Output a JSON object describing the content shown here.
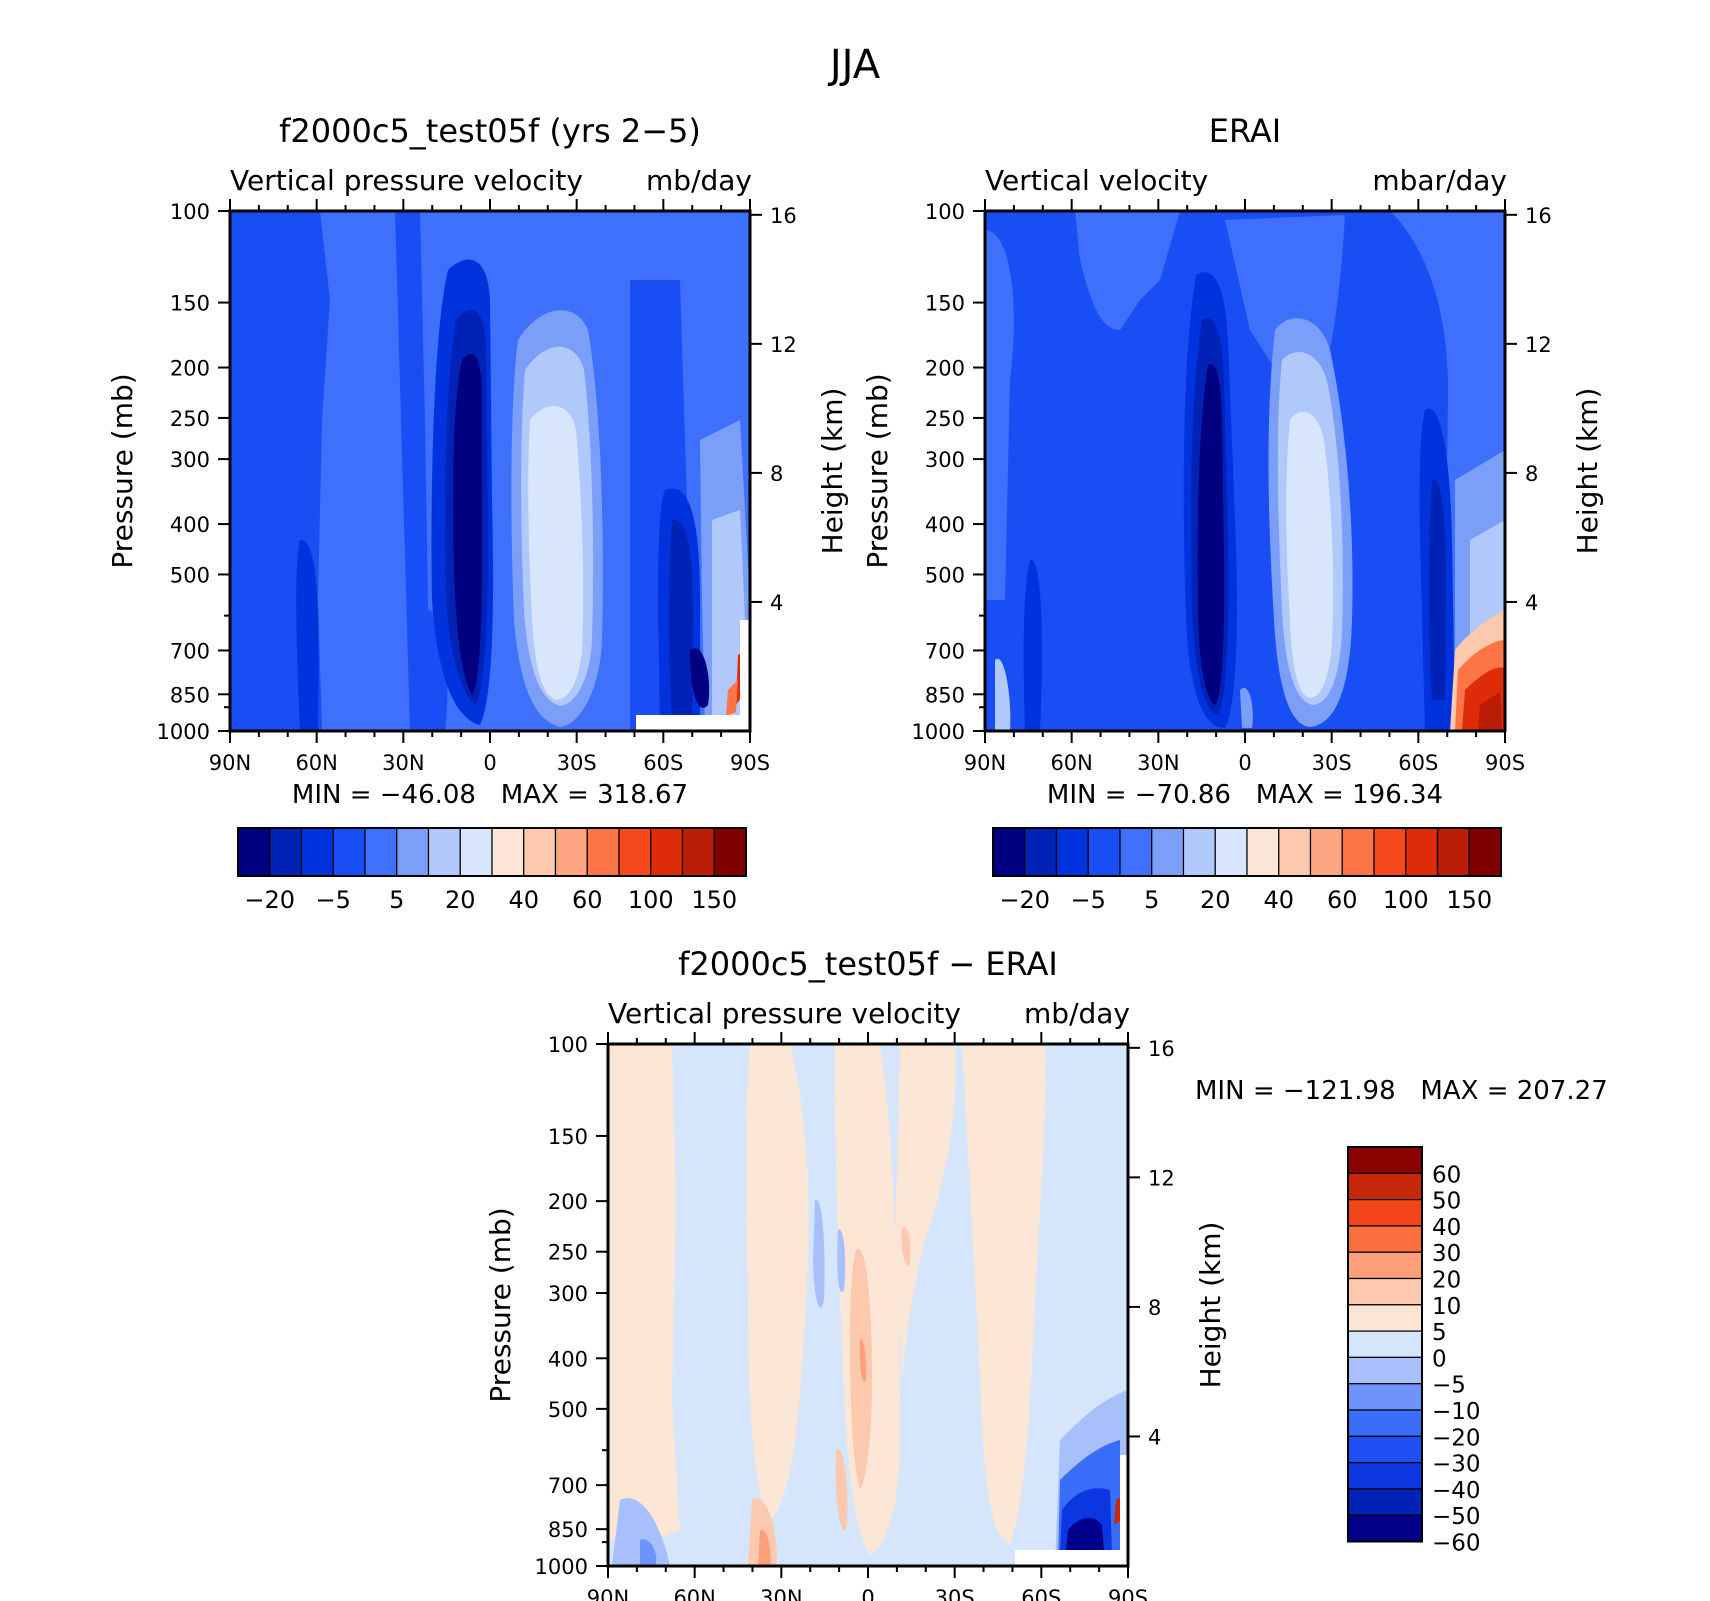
{
  "page_title": "JJA",
  "colors": {
    "model_obs_palette": [
      "#000080",
      "#0022b5",
      "#0033dd",
      "#1a4ef5",
      "#3f70fb",
      "#7b9ff8",
      "#b0c8fa",
      "#d8e6fd",
      "#fbe6d7",
      "#fcc8ae",
      "#fca583",
      "#fb7547",
      "#f5481c",
      "#dd2c07",
      "#b91d06",
      "#800000"
    ],
    "diff_palette": [
      "#00008a",
      "#0022b5",
      "#0b36e0",
      "#1d4ff5",
      "#3b6ef8",
      "#6f94f9",
      "#a7c0fb",
      "#d5e5fc",
      "#fbe6d6",
      "#fcc8ae",
      "#fca07a",
      "#fb6f3f",
      "#f3441a",
      "#c8280a",
      "#8b0000"
    ]
  },
  "chart_data": [
    {
      "type": "heatmap",
      "title": "f2000c5_test05f (yrs 2−5)",
      "subtitle_left": "Vertical pressure velocity",
      "subtitle_right": "mb/day",
      "ylabel": "Pressure (mb)",
      "ylabel_right": "Height (km)",
      "x_ticks": [
        "90N",
        "60N",
        "30N",
        "0",
        "30S",
        "60S",
        "90S"
      ],
      "y_ticks": [
        100,
        150,
        200,
        250,
        300,
        400,
        500,
        700,
        850,
        1000
      ],
      "y_scale": "log",
      "y_range": [
        1000,
        100
      ],
      "height_ticks": [
        4,
        8,
        12,
        16
      ],
      "min_max_text": "MIN = −46.08   MAX = 318.67",
      "colorbar_labels": [
        "−20",
        "−5",
        "5",
        "20",
        "40",
        "60",
        "100",
        "150"
      ],
      "colorbar_orientation": "horizontal",
      "features": [
        {
          "center": "5N",
          "p_range": [
            200,
            1000
          ],
          "value": "< -20"
        },
        {
          "center": "20S",
          "p_range": [
            170,
            1000
          ],
          "value": "10 to 20"
        },
        {
          "center": "75S",
          "p_range": [
            400,
            850
          ],
          "value": "< -20"
        }
      ]
    },
    {
      "type": "heatmap",
      "title": "ERAI",
      "subtitle_left": "Vertical velocity",
      "subtitle_right": "mbar/day",
      "ylabel": "Pressure (mb)",
      "ylabel_right": "Height (km)",
      "x_ticks": [
        "90N",
        "60N",
        "30N",
        "0",
        "30S",
        "60S",
        "90S"
      ],
      "y_ticks": [
        100,
        150,
        200,
        250,
        300,
        400,
        500,
        700,
        850,
        1000
      ],
      "y_scale": "log",
      "y_range": [
        1000,
        100
      ],
      "height_ticks": [
        4,
        8,
        12,
        16
      ],
      "min_max_text": "MIN = −70.86   MAX = 196.34",
      "colorbar_labels": [
        "−20",
        "−5",
        "5",
        "20",
        "40",
        "60",
        "100",
        "150"
      ],
      "colorbar_orientation": "horizontal",
      "features": [
        {
          "center": "10N",
          "p_range": [
            200,
            1000
          ],
          "value": "< -20"
        },
        {
          "center": "20S",
          "p_range": [
            170,
            950
          ],
          "value": "10 to 20"
        },
        {
          "center": "85S",
          "p_range": [
            700,
            1000
          ],
          "value": "> 40"
        }
      ]
    },
    {
      "type": "heatmap",
      "title": "f2000c5_test05f − ERAI",
      "subtitle_left": "Vertical pressure velocity",
      "subtitle_right": "mb/day",
      "ylabel": "Pressure (mb)",
      "ylabel_right": "Height (km)",
      "x_ticks": [
        "90N",
        "60N",
        "30N",
        "0",
        "30S",
        "60S",
        "90S"
      ],
      "y_ticks": [
        100,
        150,
        200,
        250,
        300,
        400,
        500,
        700,
        850,
        1000
      ],
      "y_scale": "log",
      "y_range": [
        1000,
        100
      ],
      "height_ticks": [
        4,
        8,
        12,
        16
      ],
      "min_max_text": "MIN = −121.98   MAX = 207.27",
      "colorbar_labels": [
        "60",
        "50",
        "40",
        "30",
        "20",
        "10",
        "5",
        "0",
        "−5",
        "−10",
        "−20",
        "−30",
        "−40",
        "−50",
        "−60"
      ],
      "colorbar_orientation": "vertical",
      "features": [
        {
          "center": "75S",
          "p_range": [
            700,
            1000
          ],
          "value": "< -60"
        },
        {
          "center": "0",
          "p_range": [
            280,
            900
          ],
          "value": "5 to 20"
        }
      ]
    }
  ]
}
